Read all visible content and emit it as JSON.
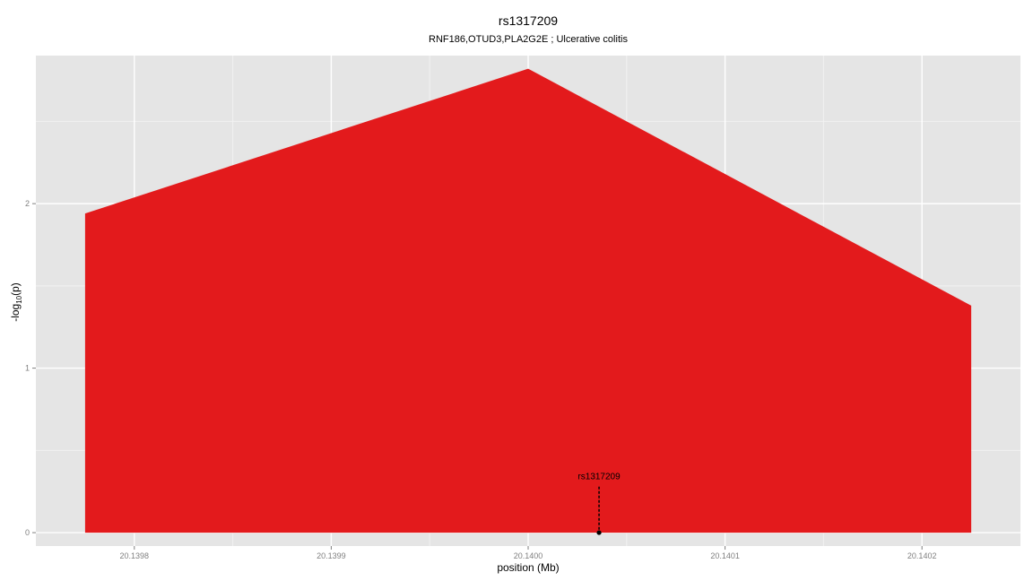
{
  "chart_data": {
    "type": "area",
    "title": "rs1317209",
    "subtitle": "RNF186,OTUD3,PLA2G2E ; Ulcerative colitis",
    "xlabel": "position (Mb)",
    "ylabel_prefix": "-log",
    "ylabel_sub": "10",
    "ylabel_suffix": "(p)",
    "xlim": [
      20.13975,
      20.14025
    ],
    "ylim": [
      -0.0814,
      2.9
    ],
    "x_ticks": [
      {
        "value": 20.1398,
        "label": "20.1398"
      },
      {
        "value": 20.1399,
        "label": "20.1399"
      },
      {
        "value": 20.14,
        "label": "20.1400"
      },
      {
        "value": 20.1401,
        "label": "20.1401"
      },
      {
        "value": 20.1402,
        "label": "20.1402"
      }
    ],
    "y_ticks": [
      {
        "value": 0,
        "label": "0"
      },
      {
        "value": 1,
        "label": "1"
      },
      {
        "value": 2,
        "label": "2"
      }
    ],
    "grid": true,
    "series": [
      {
        "x": [
          20.139775,
          20.14,
          20.140225
        ],
        "y": [
          1.94,
          2.82,
          1.38
        ],
        "color": "#e31a1c"
      }
    ],
    "annotations": [
      {
        "label": "rs1317209",
        "x": 20.140036,
        "y": 0,
        "line_top": 0.28
      }
    ],
    "colors": {
      "panel": "#e5e5e5",
      "grid_major": "#ffffff",
      "grid_minor": "#f2f2f2",
      "fill": "#e31a1c",
      "tick_text": "#7f7f7f",
      "tick_mark": "#7f7f7f"
    }
  }
}
